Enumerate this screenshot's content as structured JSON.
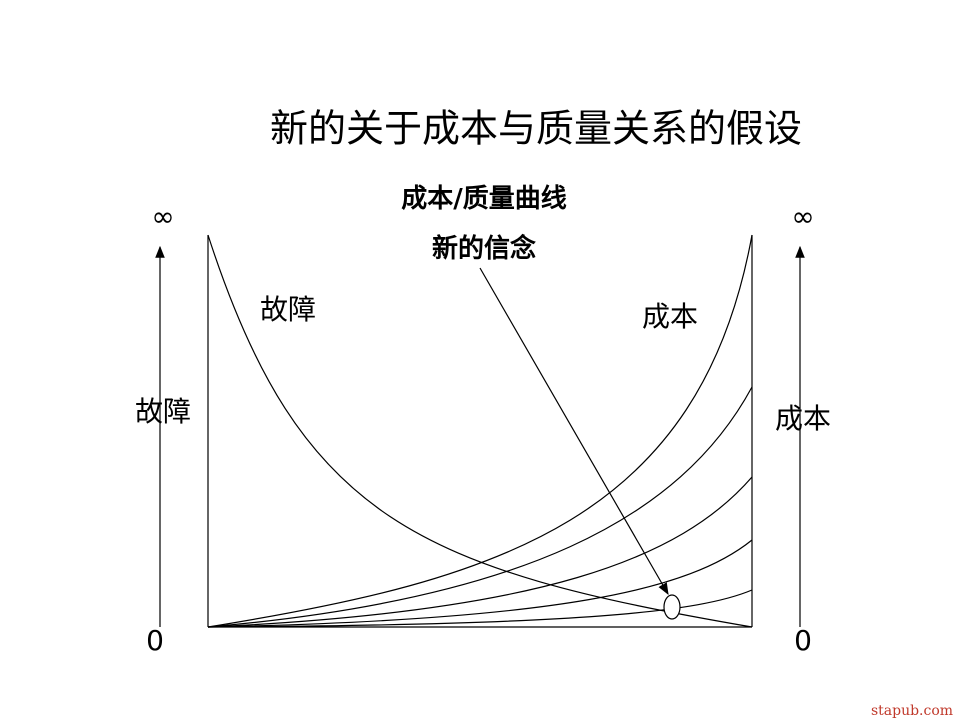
{
  "title": "新的关于成本与质量关系的假设",
  "annotations": {
    "curve_label": "成本/质量曲线",
    "belief": "新的信念"
  },
  "left_axis": {
    "top": "∞",
    "label": "故障",
    "bottom": "0"
  },
  "right_axis": {
    "top": "∞",
    "label": "成本",
    "bottom": "0"
  },
  "curves": {
    "failure": "故障",
    "cost": "成本"
  },
  "watermark": "stapub.com"
}
